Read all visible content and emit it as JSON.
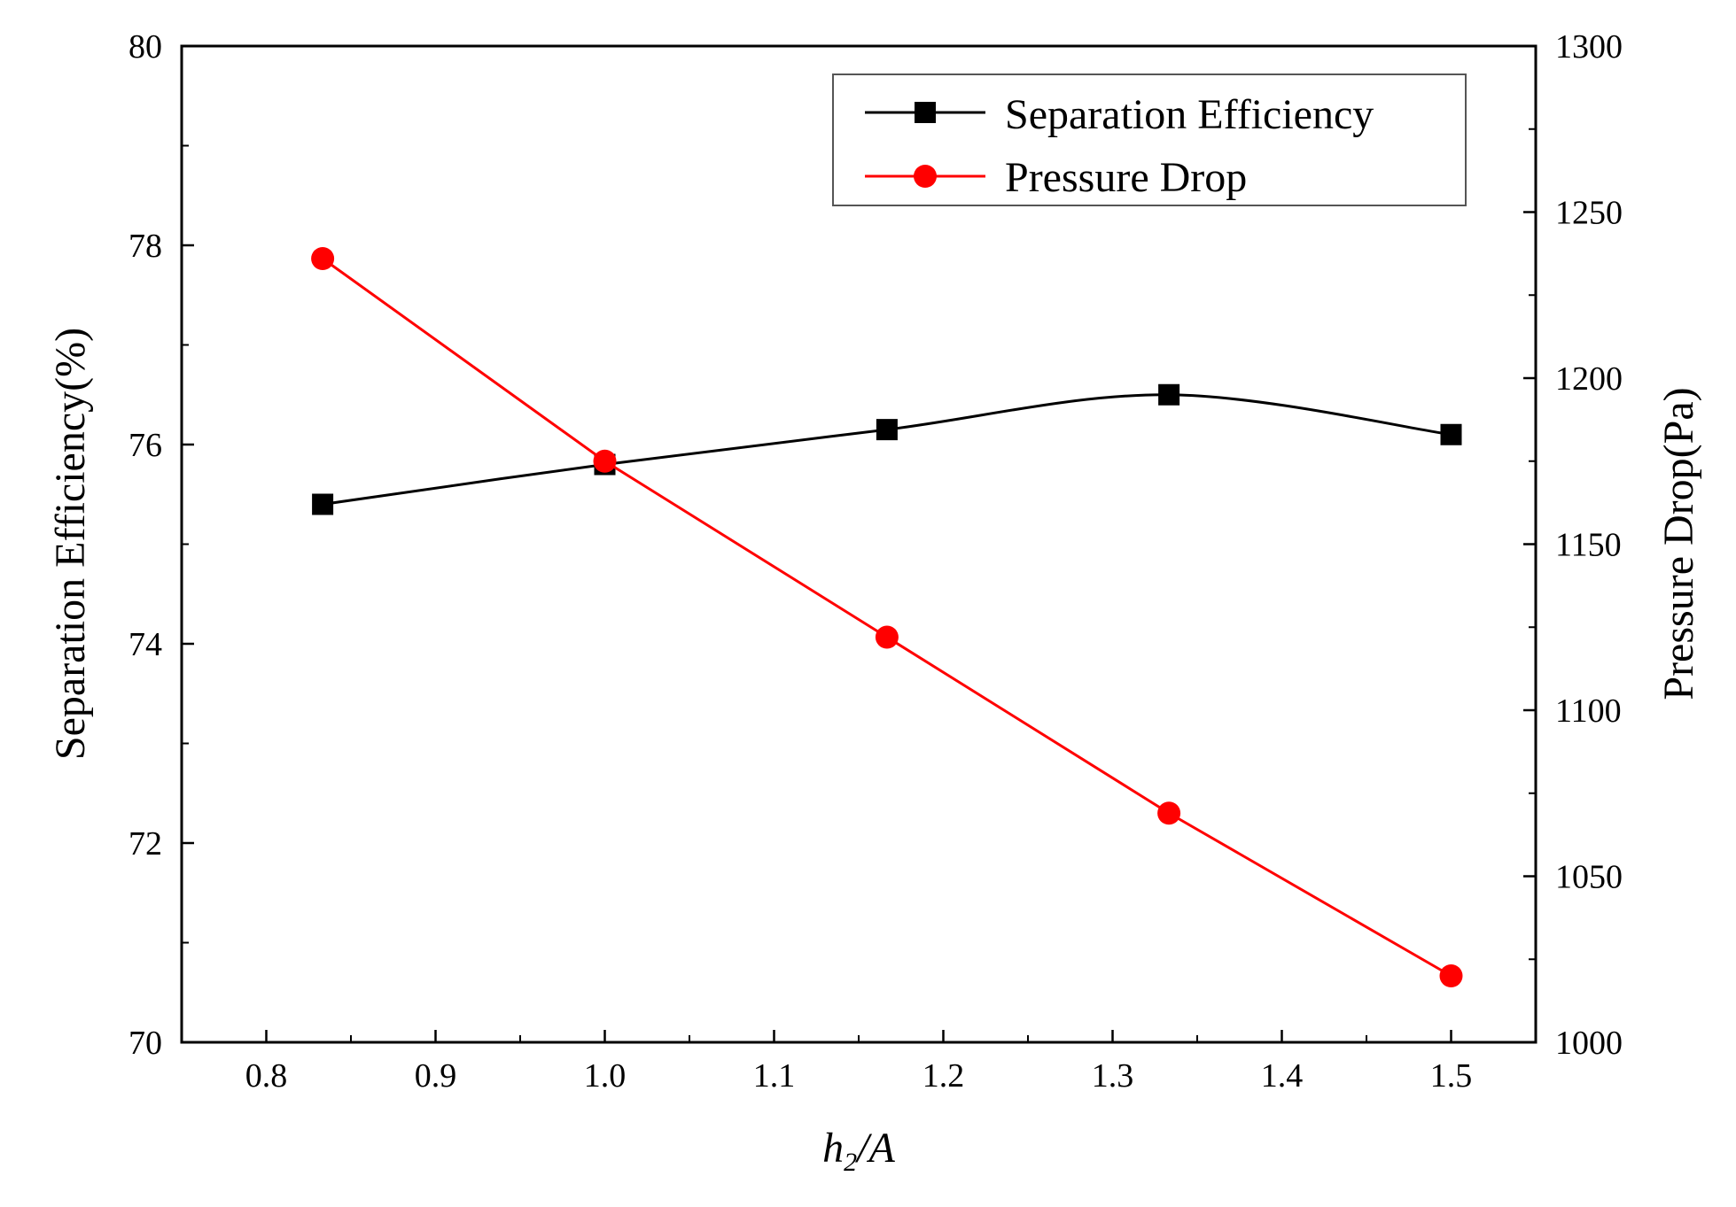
{
  "chart_data": {
    "type": "line",
    "x": [
      0.8333,
      1.0,
      1.1667,
      1.3333,
      1.5
    ],
    "xlim": [
      0.75,
      1.55
    ],
    "x_ticks": [
      "0.8",
      "0.9",
      "1.0",
      "1.1",
      "1.2",
      "1.3",
      "1.4",
      "1.5"
    ],
    "xlabel": {
      "main": "h",
      "sub": "2",
      "rest": "/A"
    },
    "ylabel_left": "Separation Efficiency(%)",
    "ylabel_right": "Pressure Drop(Pa)",
    "ylim_left": [
      70,
      80
    ],
    "ylim_right": [
      1000,
      1300
    ],
    "y_ticks_left": [
      "70",
      "72",
      "74",
      "76",
      "78",
      "80"
    ],
    "y_ticks_right": [
      "1000",
      "1050",
      "1100",
      "1150",
      "1200",
      "1250",
      "1300"
    ],
    "grid": false,
    "legend_position": "top-right",
    "series": [
      {
        "name": "Separation Efficiency",
        "axis": "left",
        "marker": "square",
        "color": "#000000",
        "smooth": true,
        "values": [
          75.4,
          75.8,
          76.15,
          76.5,
          76.1
        ]
      },
      {
        "name": "Pressure Drop",
        "axis": "right",
        "marker": "circle",
        "color": "#ff0000",
        "smooth": false,
        "values": [
          1236,
          1175,
          1122,
          1069,
          1020
        ]
      }
    ]
  }
}
